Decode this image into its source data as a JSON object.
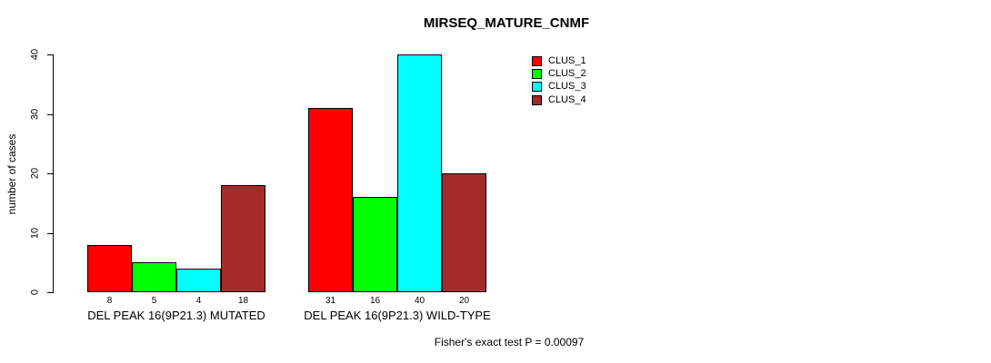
{
  "chart_data": {
    "type": "bar",
    "title": "MIRSEQ_MATURE_CNMF",
    "ylabel": "number of cases",
    "xlabel": "",
    "ylim": [
      0,
      40
    ],
    "yticks": [
      0,
      10,
      20,
      30,
      40
    ],
    "grid": false,
    "legend_position": "top-right",
    "categories": [
      "DEL PEAK 16(9P21.3) MUTATED",
      "DEL PEAK 16(9P21.3) WILD-TYPE"
    ],
    "series": [
      {
        "name": "CLUS_1",
        "color": "#FF0000",
        "values": [
          8,
          31
        ]
      },
      {
        "name": "CLUS_2",
        "color": "#00FF00",
        "values": [
          5,
          16
        ]
      },
      {
        "name": "CLUS_3",
        "color": "#00FFFF",
        "values": [
          4,
          40
        ]
      },
      {
        "name": "CLUS_4",
        "color": "#A52A2A",
        "values": [
          18,
          20
        ]
      }
    ],
    "annotation": "Fisher's exact test P = 0.00097"
  },
  "colors": {
    "background": "#ffffff",
    "bar_border": "#000000",
    "axis": "#000000"
  }
}
